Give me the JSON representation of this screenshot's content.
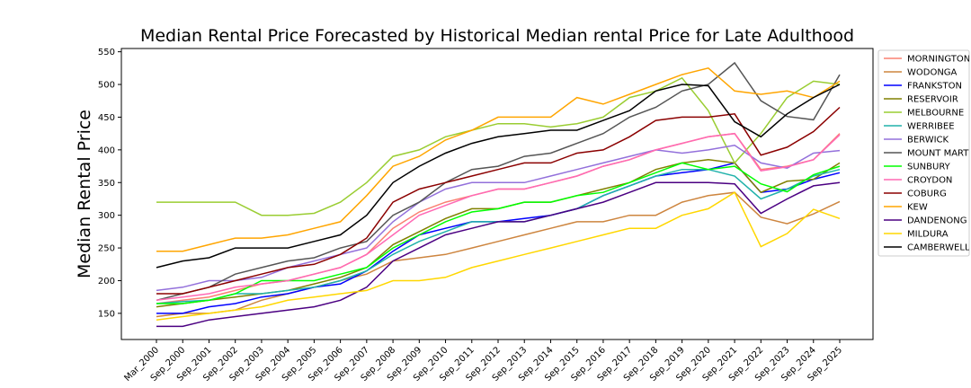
{
  "chart_data": {
    "type": "line",
    "title": "Median Rental Price Forecasted by Historical Median rental Price for Late Adulthood",
    "xlabel": "",
    "ylabel": "Median Rental Price",
    "ylim": [
      110,
      555
    ],
    "yticks": [
      150,
      200,
      250,
      300,
      350,
      400,
      450,
      500,
      550
    ],
    "grid": false,
    "legend_position": "right",
    "categories": [
      "Mar_2000",
      "Sep_2000",
      "Sep_2001",
      "Sep_2002",
      "Sep_2003",
      "Sep_2004",
      "Sep_2005",
      "Sep_2006",
      "Sep_2007",
      "Sep_2008",
      "Sep_2009",
      "Sep_2010",
      "Sep_2011",
      "Sep_2012",
      "Sep_2013",
      "Sep_2014",
      "Sep_2015",
      "Sep_2016",
      "Sep_2017",
      "Sep_2018",
      "Sep_2019",
      "Sep_2020",
      "Sep_2021",
      "Sep_2022",
      "Sep_2023",
      "Sep_2024",
      "Sep_2025"
    ],
    "series": [
      {
        "name": "MORNINGTON",
        "color": "#fa8072",
        "values": [
          165,
          170,
          175,
          185,
          195,
          200,
          210,
          220,
          240,
          280,
          305,
          320,
          330,
          340,
          340,
          350,
          360,
          375,
          385,
          400,
          410,
          420,
          425,
          370,
          375,
          385,
          425
        ]
      },
      {
        "name": "WODONGA",
        "color": "#cd853f",
        "values": [
          145,
          150,
          150,
          155,
          170,
          180,
          190,
          200,
          210,
          230,
          235,
          240,
          250,
          260,
          270,
          280,
          290,
          290,
          300,
          300,
          320,
          330,
          335,
          297,
          287,
          302,
          321
        ]
      },
      {
        "name": "FRANKSTON",
        "color": "#0000ff",
        "values": [
          150,
          150,
          160,
          165,
          175,
          180,
          190,
          195,
          215,
          245,
          270,
          280,
          290,
          290,
          295,
          300,
          310,
          330,
          345,
          360,
          365,
          370,
          380,
          335,
          340,
          355,
          365
        ]
      },
      {
        "name": "RESERVOIR",
        "color": "#808000",
        "values": [
          160,
          165,
          170,
          175,
          180,
          185,
          195,
          205,
          220,
          255,
          275,
          295,
          310,
          310,
          320,
          320,
          330,
          340,
          350,
          370,
          380,
          385,
          380,
          335,
          352,
          355,
          380
        ]
      },
      {
        "name": "MELBOURNE",
        "color": "#9acd32",
        "values": [
          320,
          320,
          320,
          320,
          300,
          300,
          303,
          320,
          350,
          390,
          400,
          420,
          430,
          440,
          440,
          435,
          440,
          450,
          480,
          490,
          510,
          460,
          380,
          425,
          480,
          505,
          500
        ]
      },
      {
        "name": "WERRIBEE",
        "color": "#20b2aa",
        "values": [
          165,
          168,
          170,
          180,
          180,
          185,
          190,
          200,
          215,
          240,
          260,
          275,
          290,
          290,
          290,
          300,
          310,
          330,
          345,
          360,
          370,
          370,
          360,
          325,
          340,
          360,
          370
        ]
      },
      {
        "name": "BERWICK",
        "color": "#9370db",
        "values": [
          185,
          190,
          200,
          200,
          205,
          220,
          230,
          240,
          250,
          290,
          320,
          340,
          350,
          350,
          350,
          360,
          370,
          380,
          390,
          400,
          395,
          400,
          407,
          380,
          372,
          395,
          399
        ]
      },
      {
        "name": "MOUNT MARTHA",
        "color": "#555555",
        "values": [
          170,
          180,
          190,
          210,
          220,
          230,
          235,
          250,
          260,
          300,
          320,
          350,
          370,
          375,
          390,
          395,
          410,
          425,
          450,
          465,
          490,
          500,
          533,
          475,
          451,
          446,
          515
        ]
      },
      {
        "name": "SUNBURY",
        "color": "#00ff00",
        "values": [
          165,
          165,
          170,
          180,
          200,
          200,
          200,
          210,
          220,
          250,
          270,
          290,
          305,
          310,
          320,
          320,
          330,
          335,
          350,
          365,
          380,
          370,
          375,
          348,
          336,
          362,
          375
        ]
      },
      {
        "name": "CROYDON",
        "color": "#ff69b4",
        "values": [
          170,
          175,
          180,
          190,
          195,
          200,
          210,
          220,
          240,
          270,
          300,
          315,
          330,
          340,
          340,
          350,
          360,
          375,
          385,
          400,
          410,
          420,
          425,
          368,
          374,
          385,
          423
        ]
      },
      {
        "name": "COBURG",
        "color": "#8b0000",
        "values": [
          180,
          180,
          190,
          200,
          210,
          220,
          225,
          240,
          265,
          320,
          340,
          350,
          360,
          370,
          380,
          380,
          395,
          400,
          420,
          445,
          450,
          450,
          455,
          392,
          404,
          428,
          465
        ]
      },
      {
        "name": "KEW",
        "color": "#ffa500",
        "values": [
          245,
          245,
          255,
          265,
          265,
          270,
          280,
          290,
          330,
          375,
          390,
          415,
          430,
          450,
          450,
          450,
          480,
          470,
          485,
          500,
          515,
          525,
          490,
          485,
          490,
          480,
          505
        ]
      },
      {
        "name": "DANDENONG",
        "color": "#4b0082",
        "values": [
          130,
          130,
          140,
          145,
          150,
          155,
          160,
          170,
          190,
          230,
          250,
          270,
          280,
          290,
          290,
          300,
          310,
          320,
          335,
          350,
          350,
          350,
          348,
          303,
          325,
          345,
          350
        ]
      },
      {
        "name": "MILDURA",
        "color": "#ffd700",
        "values": [
          140,
          145,
          150,
          155,
          160,
          170,
          175,
          180,
          185,
          200,
          200,
          205,
          220,
          230,
          240,
          250,
          260,
          270,
          280,
          280,
          300,
          310,
          335,
          252,
          272,
          309,
          295
        ]
      },
      {
        "name": "CAMBERWELL",
        "color": "#000000",
        "values": [
          220,
          230,
          235,
          250,
          250,
          250,
          260,
          270,
          300,
          350,
          375,
          395,
          410,
          420,
          425,
          430,
          430,
          445,
          460,
          490,
          500,
          498,
          443,
          420,
          455,
          480,
          500
        ]
      }
    ]
  }
}
